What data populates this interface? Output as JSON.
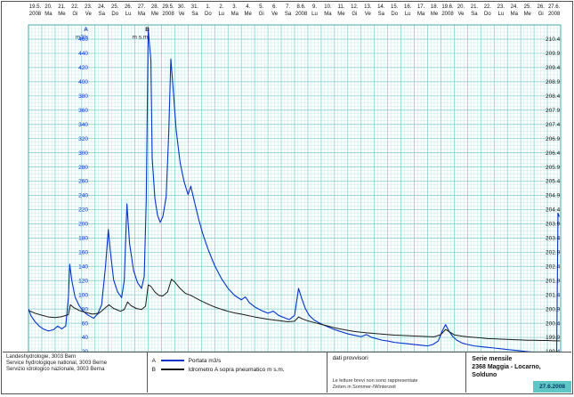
{
  "header": {
    "columns": [
      {
        "date": "19.5.",
        "sub": "2008"
      },
      {
        "date": "20.",
        "sub": "Ma"
      },
      {
        "date": "21.",
        "sub": "Me"
      },
      {
        "date": "22.",
        "sub": "Gi"
      },
      {
        "date": "23.",
        "sub": "Ve"
      },
      {
        "date": "24.",
        "sub": "Sa"
      },
      {
        "date": "25.",
        "sub": "Do"
      },
      {
        "date": "26.",
        "sub": "Lu"
      },
      {
        "date": "27.",
        "sub": "Ma"
      },
      {
        "date": "28.",
        "sub": "Me"
      },
      {
        "date": "29.5.",
        "sub": "2008"
      },
      {
        "date": "30.",
        "sub": "Ve"
      },
      {
        "date": "31.",
        "sub": "Sa"
      },
      {
        "date": "1.",
        "sub": "Do"
      },
      {
        "date": "2.",
        "sub": "Lu"
      },
      {
        "date": "3.",
        "sub": "Ma"
      },
      {
        "date": "4.",
        "sub": "Me"
      },
      {
        "date": "5.",
        "sub": "Gi"
      },
      {
        "date": "6.",
        "sub": "Ve"
      },
      {
        "date": "7.",
        "sub": "Sa"
      },
      {
        "date": "8.6.",
        "sub": "2008"
      },
      {
        "date": "9.",
        "sub": "Lu"
      },
      {
        "date": "10.",
        "sub": "Ma"
      },
      {
        "date": "11.",
        "sub": "Me"
      },
      {
        "date": "12.",
        "sub": "Gi"
      },
      {
        "date": "13.",
        "sub": "Ve"
      },
      {
        "date": "14.",
        "sub": "Sa"
      },
      {
        "date": "15.",
        "sub": "Do"
      },
      {
        "date": "16.",
        "sub": "Lu"
      },
      {
        "date": "17.",
        "sub": "Ma"
      },
      {
        "date": "18.",
        "sub": "Me"
      },
      {
        "date": "19.6.",
        "sub": "2008"
      },
      {
        "date": "20.",
        "sub": "Ve"
      },
      {
        "date": "21.",
        "sub": "Sa"
      },
      {
        "date": "22.",
        "sub": "Do"
      },
      {
        "date": "23.",
        "sub": "Lu"
      },
      {
        "date": "24.",
        "sub": "Ma"
      },
      {
        "date": "25.",
        "sub": "Me"
      },
      {
        "date": "26.",
        "sub": "Gi"
      },
      {
        "date": "27.6.",
        "sub": "2008"
      }
    ]
  },
  "legend": {
    "items": [
      {
        "letter": "A",
        "label": "Portata m3/s"
      },
      {
        "letter": "B",
        "label": "Idrometro A sopra pneumatico m s.m."
      }
    ]
  },
  "footer": {
    "agency": [
      "Landeshydrologie, 3003 Bern",
      "Service hydrologique national, 3003 Berne",
      "Servizio idrologico nazionale, 3003 Berna"
    ],
    "provisional": "dati provvisori",
    "notes": [
      "Le letture brevi non sono rappresentate",
      "Zeiten in Sommer-/Winterzeit"
    ],
    "series_title": "Serie mensile",
    "station": "2368 Maggia - Locarno, Solduno",
    "print_date": "27.6.2008"
  },
  "chart_data": {
    "type": "line",
    "title": "Serie mensile - 2368 Maggia - Locarno, Solduno",
    "x_axis": {
      "start_date": "19.5.2008",
      "end_date": "27.6.2008",
      "unit": "days",
      "range": [
        0,
        40
      ]
    },
    "y_left": {
      "name": "A",
      "unit": "m3/s",
      "min": 20,
      "max": 460,
      "tick_step": 20
    },
    "y_right": {
      "name": "B",
      "unit": "m s.m.",
      "min": 199.4,
      "max": 210.4,
      "tick_step": 0.5
    },
    "grid": {
      "minor_color": "#c6ebea",
      "major_color": "#79cccc",
      "border_color": "#2f9e9e"
    },
    "legend_position": "bottom",
    "series": [
      {
        "name": "Portata m3/s",
        "axis": "left",
        "color": "#0033cc",
        "points": [
          [
            0,
            80
          ],
          [
            0.2,
            70
          ],
          [
            0.5,
            62
          ],
          [
            0.8,
            56
          ],
          [
            1.1,
            52
          ],
          [
            1.5,
            49
          ],
          [
            1.9,
            51
          ],
          [
            2.2,
            56
          ],
          [
            2.5,
            52
          ],
          [
            2.8,
            56
          ],
          [
            3.0,
            96
          ],
          [
            3.1,
            143
          ],
          [
            3.25,
            121
          ],
          [
            3.5,
            97
          ],
          [
            3.8,
            85
          ],
          [
            4.1,
            77
          ],
          [
            4.5,
            71
          ],
          [
            4.9,
            67
          ],
          [
            5.2,
            73
          ],
          [
            5.5,
            86
          ],
          [
            5.8,
            142
          ],
          [
            6.0,
            192
          ],
          [
            6.15,
            162
          ],
          [
            6.4,
            121
          ],
          [
            6.7,
            104
          ],
          [
            7.0,
            96
          ],
          [
            7.2,
            120
          ],
          [
            7.4,
            228
          ],
          [
            7.6,
            172
          ],
          [
            7.9,
            134
          ],
          [
            8.2,
            117
          ],
          [
            8.5,
            109
          ],
          [
            8.7,
            126
          ],
          [
            8.85,
            232
          ],
          [
            9.0,
            475
          ],
          [
            9.1,
            452
          ],
          [
            9.2,
            430
          ],
          [
            9.3,
            292
          ],
          [
            9.5,
            236
          ],
          [
            9.7,
            212
          ],
          [
            9.9,
            202
          ],
          [
            10.1,
            210
          ],
          [
            10.35,
            238
          ],
          [
            10.55,
            332
          ],
          [
            10.7,
            432
          ],
          [
            10.85,
            396
          ],
          [
            11.1,
            332
          ],
          [
            11.4,
            286
          ],
          [
            11.7,
            259
          ],
          [
            12.0,
            241
          ],
          [
            12.2,
            253
          ],
          [
            12.5,
            229
          ],
          [
            12.8,
            206
          ],
          [
            13.1,
            186
          ],
          [
            13.5,
            164
          ],
          [
            14.0,
            141
          ],
          [
            14.5,
            123
          ],
          [
            15.0,
            109
          ],
          [
            15.5,
            99
          ],
          [
            16.0,
            93
          ],
          [
            16.3,
            97
          ],
          [
            16.6,
            89
          ],
          [
            17.0,
            83
          ],
          [
            17.5,
            78
          ],
          [
            18.0,
            74
          ],
          [
            18.4,
            77
          ],
          [
            18.8,
            71
          ],
          [
            19.2,
            68
          ],
          [
            19.6,
            65
          ],
          [
            20.0,
            71
          ],
          [
            20.3,
            109
          ],
          [
            20.5,
            97
          ],
          [
            20.8,
            81
          ],
          [
            21.1,
            71
          ],
          [
            21.5,
            64
          ],
          [
            22.0,
            59
          ],
          [
            22.5,
            55
          ],
          [
            23.0,
            51
          ],
          [
            23.5,
            48
          ],
          [
            24.0,
            45
          ],
          [
            24.5,
            43
          ],
          [
            25.0,
            41
          ],
          [
            25.4,
            44
          ],
          [
            25.8,
            40
          ],
          [
            26.2,
            38
          ],
          [
            26.6,
            36
          ],
          [
            27.0,
            35
          ],
          [
            27.5,
            33
          ],
          [
            28.0,
            32
          ],
          [
            28.5,
            31
          ],
          [
            29.0,
            30
          ],
          [
            29.5,
            29
          ],
          [
            30.0,
            28
          ],
          [
            30.4,
            30
          ],
          [
            30.8,
            35
          ],
          [
            31.1,
            49
          ],
          [
            31.35,
            58
          ],
          [
            31.6,
            49
          ],
          [
            31.9,
            41
          ],
          [
            32.2,
            36
          ],
          [
            32.6,
            32
          ],
          [
            33.0,
            30
          ],
          [
            33.5,
            28
          ],
          [
            34.0,
            27
          ],
          [
            34.5,
            26
          ],
          [
            35.0,
            25
          ],
          [
            35.5,
            24
          ],
          [
            36.0,
            23
          ],
          [
            36.5,
            22
          ],
          [
            37.0,
            21
          ],
          [
            37.5,
            20
          ],
          [
            38.0,
            19
          ],
          [
            38.5,
            18
          ],
          [
            39.0,
            17
          ],
          [
            39.4,
            16
          ],
          [
            39.7,
            16
          ],
          [
            39.8,
            215
          ],
          [
            39.9,
            210
          ]
        ]
      },
      {
        "name": "Idrometro A sopra pneumatico m s.m.",
        "axis": "right",
        "color": "#1a1a1a",
        "points": [
          [
            0,
            200.85
          ],
          [
            0.5,
            200.75
          ],
          [
            1.0,
            200.68
          ],
          [
            1.5,
            200.62
          ],
          [
            2.0,
            200.6
          ],
          [
            2.5,
            200.63
          ],
          [
            3.0,
            200.7
          ],
          [
            3.15,
            201.05
          ],
          [
            3.4,
            200.95
          ],
          [
            3.8,
            200.85
          ],
          [
            4.3,
            200.78
          ],
          [
            4.8,
            200.72
          ],
          [
            5.3,
            200.75
          ],
          [
            5.8,
            200.95
          ],
          [
            6.05,
            201.05
          ],
          [
            6.4,
            200.92
          ],
          [
            6.9,
            200.82
          ],
          [
            7.2,
            200.88
          ],
          [
            7.45,
            201.15
          ],
          [
            7.7,
            201.02
          ],
          [
            8.1,
            200.92
          ],
          [
            8.5,
            200.88
          ],
          [
            8.8,
            201.0
          ],
          [
            9.0,
            201.75
          ],
          [
            9.2,
            201.7
          ],
          [
            9.5,
            201.5
          ],
          [
            9.8,
            201.38
          ],
          [
            10.1,
            201.36
          ],
          [
            10.45,
            201.5
          ],
          [
            10.75,
            201.95
          ],
          [
            11.0,
            201.85
          ],
          [
            11.4,
            201.62
          ],
          [
            11.8,
            201.45
          ],
          [
            12.2,
            201.38
          ],
          [
            12.6,
            201.28
          ],
          [
            13.0,
            201.18
          ],
          [
            13.5,
            201.07
          ],
          [
            14.0,
            200.97
          ],
          [
            14.5,
            200.89
          ],
          [
            15.0,
            200.82
          ],
          [
            15.5,
            200.76
          ],
          [
            16.0,
            200.72
          ],
          [
            16.5,
            200.67
          ],
          [
            17.0,
            200.62
          ],
          [
            17.5,
            200.58
          ],
          [
            18.0,
            200.54
          ],
          [
            18.5,
            200.51
          ],
          [
            19.0,
            200.48
          ],
          [
            19.5,
            200.45
          ],
          [
            20.0,
            200.47
          ],
          [
            20.3,
            200.62
          ],
          [
            20.6,
            200.55
          ],
          [
            21.0,
            200.48
          ],
          [
            21.5,
            200.42
          ],
          [
            22.0,
            200.36
          ],
          [
            22.5,
            200.3
          ],
          [
            23.0,
            200.24
          ],
          [
            23.5,
            200.19
          ],
          [
            24.0,
            200.15
          ],
          [
            24.5,
            200.11
          ],
          [
            25.0,
            200.08
          ],
          [
            25.5,
            200.06
          ],
          [
            26.0,
            200.04
          ],
          [
            26.5,
            200.02
          ],
          [
            27.0,
            200.0
          ],
          [
            27.5,
            199.98
          ],
          [
            28.0,
            199.97
          ],
          [
            28.5,
            199.96
          ],
          [
            29.0,
            199.95
          ],
          [
            29.5,
            199.94
          ],
          [
            30.0,
            199.93
          ],
          [
            30.5,
            199.92
          ],
          [
            31.0,
            200.0
          ],
          [
            31.35,
            200.18
          ],
          [
            31.7,
            200.08
          ],
          [
            32.0,
            199.99
          ],
          [
            32.5,
            199.95
          ],
          [
            33.0,
            199.92
          ],
          [
            33.5,
            199.9
          ],
          [
            34.0,
            199.88
          ],
          [
            34.5,
            199.86
          ],
          [
            35.0,
            199.85
          ],
          [
            35.5,
            199.84
          ],
          [
            36.0,
            199.83
          ],
          [
            36.5,
            199.82
          ],
          [
            37.0,
            199.81
          ],
          [
            37.5,
            199.8
          ],
          [
            38.0,
            199.8
          ],
          [
            38.5,
            199.79
          ],
          [
            39.0,
            199.79
          ],
          [
            39.5,
            199.78
          ],
          [
            39.95,
            199.78
          ]
        ]
      }
    ]
  }
}
